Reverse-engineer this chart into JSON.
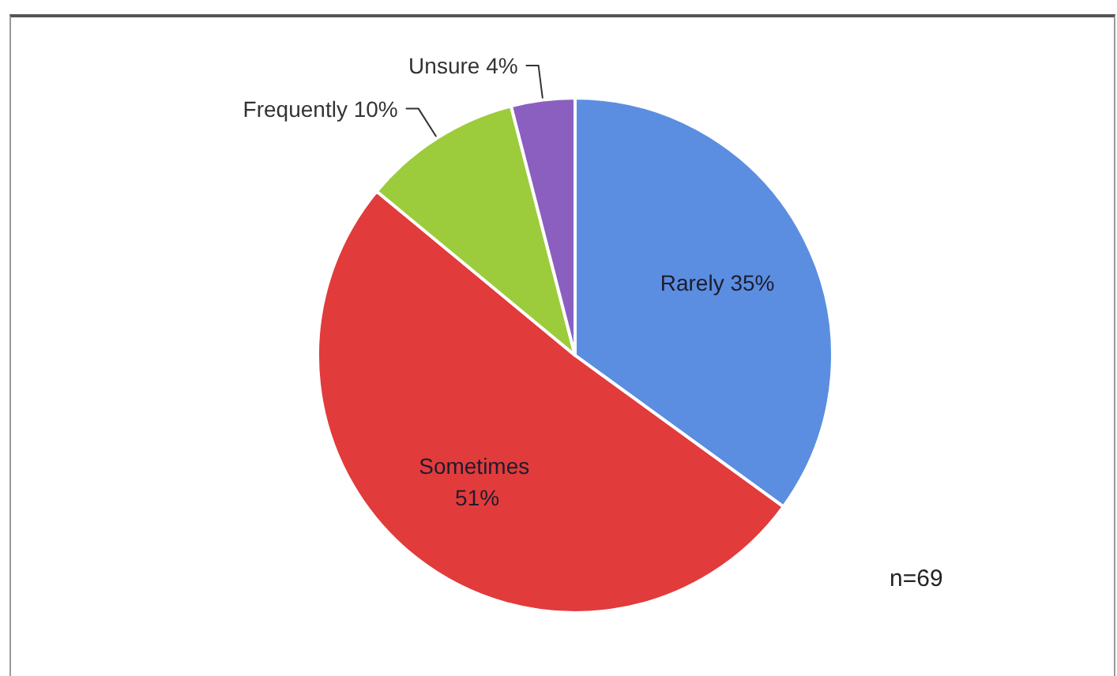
{
  "chart_data": {
    "type": "pie",
    "categories": [
      "Rarely",
      "Sometimes",
      "Frequently",
      "Unsure"
    ],
    "values": [
      35,
      51,
      10,
      4
    ],
    "colors": [
      "#5b8ee0",
      "#e23b3b",
      "#9ccc3c",
      "#8a5fc0"
    ],
    "value_labels": [
      "35%",
      "51%",
      "10%",
      "4%"
    ],
    "annotations": [
      "n=69"
    ]
  }
}
